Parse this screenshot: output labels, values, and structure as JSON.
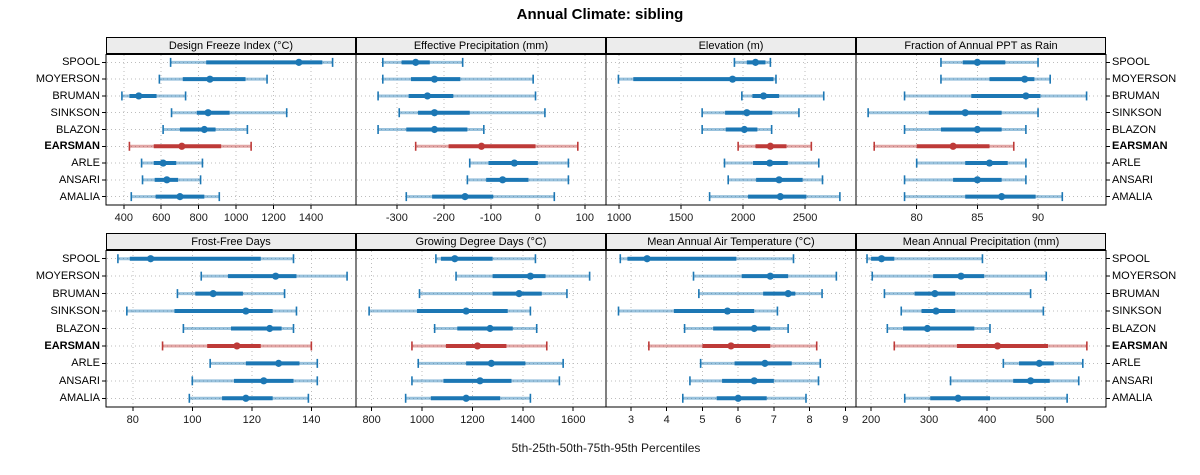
{
  "title": "Annual Climate: sibling",
  "caption": "5th-25th-50th-75th-95th Percentiles",
  "colors": {
    "series_blue": "#1C77B4",
    "series_red": "#BE3A38",
    "grid": "#bdbdbd",
    "strip_bg": "#ececec",
    "panel_border": "#000000",
    "tick_text": "#1a1a1a"
  },
  "stations": [
    "SPOOL",
    "MOYERSON",
    "BRUMAN",
    "SINKSON",
    "BLAZON",
    "EARSMAN",
    "ARLE",
    "ANSARI",
    "AMALIA"
  ],
  "highlight_station": "EARSMAN",
  "chart_data": {
    "type": "dotplot-percentiles",
    "percentile_order": [
      "p5",
      "p25",
      "p50",
      "p75",
      "p95"
    ],
    "grid": "dotted",
    "panels": [
      {
        "title": "Design Freeze Index (°C)",
        "row": 0,
        "col": 0,
        "xlim": [
          305,
          1640
        ],
        "ticks": [
          400,
          600,
          800,
          1000,
          1200,
          1400
        ],
        "values": {
          "SPOOL": [
            650,
            840,
            1335,
            1460,
            1515
          ],
          "MOYERSON": [
            590,
            715,
            860,
            1050,
            1165
          ],
          "BRUMAN": [
            390,
            430,
            480,
            575,
            730
          ],
          "SINKSON": [
            655,
            790,
            850,
            965,
            1270
          ],
          "BLAZON": [
            610,
            700,
            830,
            890,
            1060
          ],
          "EARSMAN": [
            430,
            560,
            710,
            920,
            1080
          ],
          "ARLE": [
            495,
            560,
            610,
            680,
            820
          ],
          "ANSARI": [
            500,
            565,
            630,
            690,
            810
          ],
          "AMALIA": [
            440,
            570,
            700,
            830,
            910
          ]
        }
      },
      {
        "title": "Effective Precipitation (mm)",
        "row": 0,
        "col": 1,
        "xlim": [
          -387,
          145
        ],
        "ticks": [
          -300,
          -200,
          -100,
          0,
          100
        ],
        "values": {
          "SPOOL": [
            -330,
            -290,
            -260,
            -230,
            -160
          ],
          "MOYERSON": [
            -330,
            -270,
            -220,
            -165,
            -10
          ],
          "BRUMAN": [
            -340,
            -275,
            -235,
            -180,
            -5
          ],
          "SINKSON": [
            -295,
            -255,
            -220,
            -145,
            15
          ],
          "BLAZON": [
            -340,
            -280,
            -220,
            -150,
            -115
          ],
          "EARSMAN": [
            -260,
            -190,
            -120,
            -5,
            85
          ],
          "ARLE": [
            -145,
            -105,
            -50,
            0,
            65
          ],
          "ANSARI": [
            -150,
            -110,
            -75,
            -20,
            65
          ],
          "AMALIA": [
            -280,
            -225,
            -155,
            -95,
            35
          ]
        }
      },
      {
        "title": "Elevation (m)",
        "row": 0,
        "col": 2,
        "xlim": [
          895,
          2910
        ],
        "ticks": [
          1000,
          1500,
          2000,
          2500
        ],
        "values": {
          "SPOOL": [
            1930,
            2030,
            2100,
            2180,
            2220
          ],
          "MOYERSON": [
            995,
            1115,
            1915,
            2245,
            2265
          ],
          "BRUMAN": [
            1990,
            2075,
            2165,
            2290,
            2650
          ],
          "SINKSON": [
            1670,
            1855,
            2030,
            2235,
            2450
          ],
          "BLAZON": [
            1670,
            1860,
            2010,
            2115,
            2230
          ],
          "EARSMAN": [
            1960,
            2100,
            2220,
            2350,
            2550
          ],
          "ARLE": [
            1850,
            2080,
            2215,
            2360,
            2610
          ],
          "ANSARI": [
            1880,
            2105,
            2290,
            2480,
            2640
          ],
          "AMALIA": [
            1730,
            2040,
            2300,
            2510,
            2780
          ]
        }
      },
      {
        "title": "Fraction of Annual PPT as Rain",
        "row": 0,
        "col": 3,
        "xlim": [
          75,
          95.6
        ],
        "ticks": [
          80,
          85,
          90
        ],
        "values": {
          "SPOOL": [
            82,
            83.8,
            85,
            87.3,
            90
          ],
          "MOYERSON": [
            82,
            86,
            88.9,
            89.7,
            91
          ],
          "BRUMAN": [
            79,
            84.5,
            89,
            90.2,
            94
          ],
          "SINKSON": [
            76,
            81,
            84,
            87,
            90
          ],
          "BLAZON": [
            79,
            82,
            85,
            87,
            89
          ],
          "EARSMAN": [
            76.5,
            80,
            83,
            86,
            88
          ],
          "ARLE": [
            80,
            84,
            86,
            87.5,
            89
          ],
          "ANSARI": [
            79,
            83,
            85,
            87,
            89
          ],
          "AMALIA": [
            79,
            84,
            87,
            89.8,
            92
          ]
        }
      },
      {
        "title": "Frost-Free Days",
        "row": 1,
        "col": 0,
        "xlim": [
          71,
          155
        ],
        "ticks": [
          80,
          100,
          120,
          140
        ],
        "values": {
          "SPOOL": [
            75,
            79,
            86,
            123,
            134
          ],
          "MOYERSON": [
            103,
            112,
            128,
            135,
            152
          ],
          "BRUMAN": [
            95,
            101,
            107,
            117,
            131
          ],
          "SINKSON": [
            78,
            94,
            118,
            127,
            135
          ],
          "BLAZON": [
            97,
            113,
            126,
            130,
            134
          ],
          "EARSMAN": [
            90,
            105,
            115,
            123,
            140
          ],
          "ARLE": [
            106,
            118,
            129,
            136,
            142
          ],
          "ANSARI": [
            100,
            114,
            124,
            134,
            142
          ],
          "AMALIA": [
            99,
            110,
            118,
            127,
            139
          ]
        }
      },
      {
        "title": "Growing Degree Days (°C)",
        "row": 1,
        "col": 1,
        "xlim": [
          738,
          1730
        ],
        "ticks": [
          800,
          1000,
          1200,
          1400,
          1600
        ],
        "values": {
          "SPOOL": [
            1055,
            1075,
            1130,
            1280,
            1450
          ],
          "MOYERSON": [
            1135,
            1280,
            1430,
            1490,
            1665
          ],
          "BRUMAN": [
            990,
            1280,
            1385,
            1475,
            1575
          ],
          "SINKSON": [
            790,
            980,
            1175,
            1340,
            1430
          ],
          "BLAZON": [
            1050,
            1140,
            1270,
            1360,
            1455
          ],
          "EARSMAN": [
            960,
            1095,
            1220,
            1335,
            1495
          ],
          "ARLE": [
            985,
            1175,
            1275,
            1410,
            1560
          ],
          "ANSARI": [
            960,
            1085,
            1230,
            1355,
            1545
          ],
          "AMALIA": [
            935,
            1035,
            1175,
            1310,
            1430
          ]
        }
      },
      {
        "title": "Mean Annual Air Temperature (°C)",
        "row": 1,
        "col": 2,
        "xlim": [
          2.3,
          9.3
        ],
        "ticks": [
          3,
          4,
          5,
          6,
          7,
          8,
          9
        ],
        "values": {
          "SPOOL": [
            2.7,
            2.9,
            3.45,
            5.95,
            7.55
          ],
          "MOYERSON": [
            4.75,
            6.1,
            6.9,
            7.4,
            8.75
          ],
          "BRUMAN": [
            4.9,
            6.7,
            7.4,
            7.6,
            8.35
          ],
          "SINKSON": [
            2.65,
            4.2,
            5.7,
            6.45,
            7.1
          ],
          "BLAZON": [
            4.5,
            5.3,
            6.45,
            6.9,
            7.4
          ],
          "EARSMAN": [
            3.5,
            5.0,
            5.8,
            6.9,
            8.2
          ],
          "ARLE": [
            4.95,
            5.9,
            6.75,
            7.5,
            8.3
          ],
          "ANSARI": [
            4.65,
            5.55,
            6.45,
            7.0,
            8.25
          ],
          "AMALIA": [
            4.45,
            5.4,
            6.0,
            6.8,
            7.9
          ]
        }
      },
      {
        "title": "Mean Annual Precipitation (mm)",
        "row": 1,
        "col": 3,
        "xlim": [
          174,
          605
        ],
        "ticks": [
          200,
          300,
          400,
          500
        ],
        "values": {
          "SPOOL": [
            193,
            200,
            218,
            240,
            392
          ],
          "MOYERSON": [
            202,
            307,
            355,
            395,
            502
          ],
          "BRUMAN": [
            223,
            275,
            310,
            345,
            475
          ],
          "SINKSON": [
            252,
            287,
            312,
            345,
            497
          ],
          "BLAZON": [
            228,
            255,
            297,
            378,
            405
          ],
          "EARSMAN": [
            240,
            348,
            418,
            505,
            572
          ],
          "ARLE": [
            428,
            455,
            490,
            515,
            565
          ],
          "ANSARI": [
            337,
            445,
            475,
            508,
            558
          ],
          "AMALIA": [
            258,
            302,
            350,
            405,
            538
          ]
        }
      }
    ]
  }
}
